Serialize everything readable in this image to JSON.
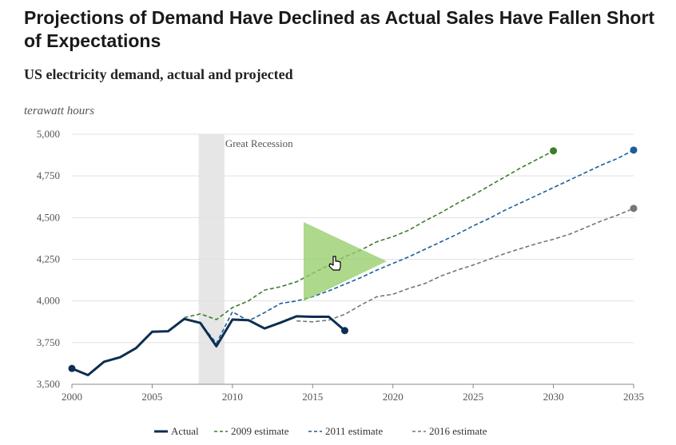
{
  "header": {
    "title": "Projections of Demand Have Declined as Actual Sales Have Fallen Short of Expectations",
    "subtitle": "US electricity demand, actual and projected"
  },
  "chart_data": {
    "type": "line",
    "unit_label": "terawatt hours",
    "xlim": [
      2000,
      2035
    ],
    "ylim": [
      3500,
      5000
    ],
    "x_ticks": [
      2000,
      2005,
      2010,
      2015,
      2020,
      2025,
      2030,
      2035
    ],
    "y_ticks": [
      3500,
      3750,
      4000,
      4250,
      4500,
      4750,
      5000
    ],
    "y_tick_labels": [
      "3,500",
      "3,750",
      "4,000",
      "4,250",
      "4,500",
      "4,750",
      "5,000"
    ],
    "grid": "horizontal",
    "legend_position": "bottom",
    "shaded_period": {
      "label": "Great Recession",
      "start": 2007.9,
      "end": 2009.5,
      "color": "#e6e6e6"
    },
    "series": [
      {
        "name": "Actual",
        "style": "solid",
        "color": "#0d2e52",
        "x": [
          2000,
          2001,
          2002,
          2003,
          2004,
          2005,
          2006,
          2007,
          2008,
          2009,
          2010,
          2011,
          2012,
          2013,
          2014,
          2015,
          2016,
          2017
        ],
        "y": [
          3595,
          3555,
          3635,
          3662,
          3717,
          3815,
          3818,
          3892,
          3868,
          3728,
          3888,
          3885,
          3835,
          3870,
          3908,
          3905,
          3905,
          3822
        ]
      },
      {
        "name": "2009 estimate",
        "style": "dashed",
        "color": "#3a7d2c",
        "x": [
          2007,
          2008,
          2009,
          2010,
          2011,
          2012,
          2013,
          2014,
          2015,
          2016,
          2017,
          2018,
          2019,
          2020,
          2021,
          2022,
          2023,
          2024,
          2025,
          2026,
          2027,
          2028,
          2029,
          2030
        ],
        "y": [
          3900,
          3922,
          3888,
          3960,
          4000,
          4065,
          4085,
          4115,
          4165,
          4215,
          4265,
          4305,
          4355,
          4385,
          4425,
          4480,
          4530,
          4585,
          4635,
          4690,
          4745,
          4800,
          4850,
          4900
        ]
      },
      {
        "name": "2011 estimate",
        "style": "dashed",
        "color": "#1a5e9e",
        "x": [
          2008,
          2009,
          2010,
          2011,
          2012,
          2013,
          2014,
          2015,
          2016,
          2017,
          2018,
          2019,
          2020,
          2021,
          2022,
          2023,
          2024,
          2025,
          2026,
          2027,
          2028,
          2029,
          2030,
          2031,
          2032,
          2033,
          2034,
          2035
        ],
        "y": [
          3868,
          3745,
          3935,
          3880,
          3930,
          3985,
          4000,
          4025,
          4060,
          4100,
          4140,
          4185,
          4225,
          4265,
          4310,
          4355,
          4400,
          4450,
          4495,
          4545,
          4590,
          4635,
          4680,
          4725,
          4770,
          4815,
          4855,
          4905
        ]
      },
      {
        "name": "2016 estimate",
        "style": "dashed",
        "color": "#777777",
        "x": [
          2014,
          2015,
          2016,
          2017,
          2018,
          2019,
          2020,
          2021,
          2022,
          2023,
          2024,
          2025,
          2026,
          2027,
          2028,
          2029,
          2030,
          2031,
          2032,
          2033,
          2034,
          2035
        ],
        "y": [
          3880,
          3875,
          3885,
          3920,
          3975,
          4025,
          4040,
          4075,
          4105,
          4150,
          4185,
          4215,
          4250,
          4285,
          4315,
          4345,
          4370,
          4400,
          4440,
          4480,
          4515,
          4555
        ]
      }
    ]
  }
}
